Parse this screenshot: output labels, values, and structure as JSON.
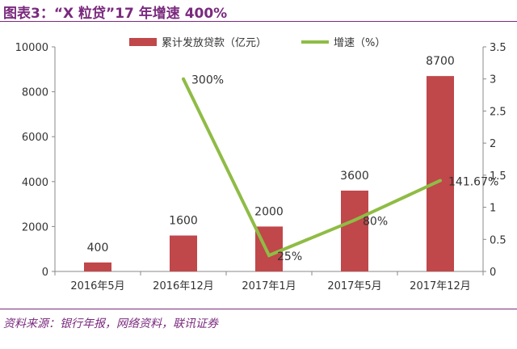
{
  "figure_title": "图表3：“X 粒贷”17 年增速 400%",
  "source": "资料来源：银行年报，网络资料，联讯证券",
  "chart_data": {
    "type": "bar+line",
    "title": "",
    "categories": [
      "2016年5月",
      "2016年12月",
      "2017年1月",
      "2017年5月",
      "2017年12月"
    ],
    "series": [
      {
        "name": "累计发放贷款（亿元）",
        "type": "bar",
        "axis": "left",
        "color": "#c0474a",
        "values": [
          400,
          1600,
          2000,
          3600,
          8700
        ],
        "labels": [
          "400",
          "1600",
          "2000",
          "3600",
          "8700"
        ]
      },
      {
        "name": "增速（%）",
        "type": "line",
        "axis": "right",
        "color": "#8fbc45",
        "values": [
          null,
          3,
          0.25,
          0.8,
          1.4167
        ],
        "labels": [
          "",
          "300%",
          "25%",
          "80%",
          "141.67%"
        ]
      }
    ],
    "y_left": {
      "min": 0,
      "max": 10000,
      "ticks": [
        "0",
        "2000",
        "4000",
        "6000",
        "8000",
        "10000"
      ]
    },
    "y_right": {
      "min": 0,
      "max": 3.5,
      "ticks": [
        "0",
        "0.5",
        "1",
        "1.5",
        "2",
        "2.5",
        "3",
        "3.5"
      ]
    },
    "grid": false,
    "legend_position": "top"
  }
}
